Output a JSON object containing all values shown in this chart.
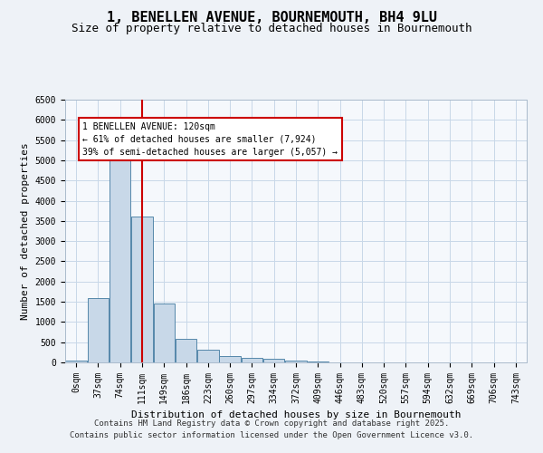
{
  "title": "1, BENELLEN AVENUE, BOURNEMOUTH, BH4 9LU",
  "subtitle": "Size of property relative to detached houses in Bournemouth",
  "xlabel": "Distribution of detached houses by size in Bournemouth",
  "ylabel": "Number of detached properties",
  "bin_labels": [
    "0sqm",
    "37sqm",
    "74sqm",
    "111sqm",
    "149sqm",
    "186sqm",
    "223sqm",
    "260sqm",
    "297sqm",
    "334sqm",
    "372sqm",
    "409sqm",
    "446sqm",
    "483sqm",
    "520sqm",
    "557sqm",
    "594sqm",
    "632sqm",
    "669sqm",
    "706sqm",
    "743sqm"
  ],
  "bar_values": [
    50,
    1600,
    5050,
    3600,
    1450,
    580,
    310,
    160,
    110,
    90,
    50,
    30,
    10,
    5,
    0,
    0,
    0,
    0,
    0,
    0,
    0
  ],
  "bar_color": "#c8d8e8",
  "bar_edge_color": "#5588aa",
  "property_bin_index": 3,
  "vline_color": "#cc0000",
  "annotation_line1": "1 BENELLEN AVENUE: 120sqm",
  "annotation_line2": "← 61% of detached houses are smaller (7,924)",
  "annotation_line3": "39% of semi-detached houses are larger (5,057) →",
  "annotation_box_color": "#cc0000",
  "ylim": [
    0,
    6500
  ],
  "yticks": [
    0,
    500,
    1000,
    1500,
    2000,
    2500,
    3000,
    3500,
    4000,
    4500,
    5000,
    5500,
    6000,
    6500
  ],
  "footer_line1": "Contains HM Land Registry data © Crown copyright and database right 2025.",
  "footer_line2": "Contains public sector information licensed under the Open Government Licence v3.0.",
  "background_color": "#eef2f7",
  "plot_bg_color": "#f5f8fc",
  "grid_color": "#c8d8e8",
  "title_fontsize": 11,
  "subtitle_fontsize": 9,
  "axis_label_fontsize": 8,
  "tick_fontsize": 7,
  "annotation_fontsize": 7,
  "footer_fontsize": 6.5
}
